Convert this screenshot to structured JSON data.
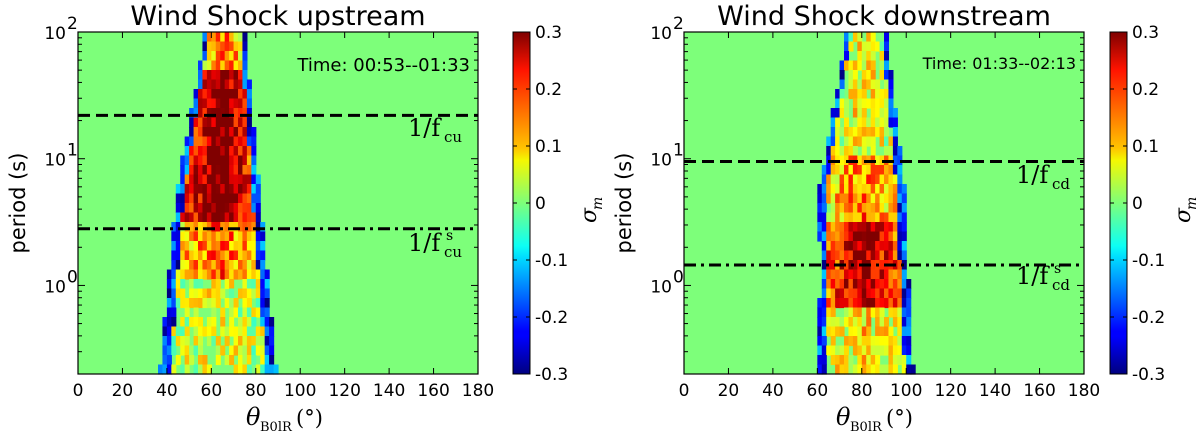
{
  "chart_data": [
    {
      "type": "heatmap",
      "title": "Wind Shock upstream",
      "annotation": "Time: 00:53--01:33",
      "ylabel": "period (s)",
      "xlabel_main": "θ",
      "xlabel_sub": "B0lR",
      "xlabel_unit": "(°)",
      "xlim": [
        0,
        180
      ],
      "ylim": [
        0.2,
        100
      ],
      "yscale": "log",
      "x_ticks": [
        "0",
        "20",
        "40",
        "60",
        "80",
        "100",
        "120",
        "140",
        "160",
        "180"
      ],
      "y_ticks": [
        "10",
        "10",
        "10"
      ],
      "y_tick_exps": [
        "0",
        "1",
        "2"
      ],
      "y_tick_values": [
        1,
        10,
        100
      ],
      "background_value": 0,
      "lines": [
        {
          "style": "dashed",
          "period": 22,
          "label_main": "1/f",
          "label_sub": "cu",
          "label_sup": ""
        },
        {
          "style": "dashdot",
          "period": 2.8,
          "label_main": "1/f",
          "label_sub": "cu",
          "label_sup": "s"
        }
      ],
      "structure": {
        "theta_center_top": 66,
        "theta_width_top": 14,
        "theta_center_mid": 63,
        "theta_width_mid": 33,
        "theta_center_low": 63,
        "theta_width_low": 48
      },
      "colorbar": {
        "label": "σ",
        "label_sub": "m",
        "ticks": [
          "0.3",
          "0.2",
          "0.1",
          "0",
          "-0.1",
          "-0.2",
          "-0.3"
        ],
        "vmin": -0.3,
        "vmax": 0.3
      }
    },
    {
      "type": "heatmap",
      "title": "Wind Shock downstream",
      "annotation": "Time: 01:33--02:13",
      "ylabel": "period (s)",
      "xlabel_main": "θ",
      "xlabel_sub": "B0lR",
      "xlabel_unit": "(°)",
      "xlim": [
        0,
        180
      ],
      "ylim": [
        0.2,
        100
      ],
      "yscale": "log",
      "x_ticks": [
        "0",
        "20",
        "40",
        "60",
        "80",
        "100",
        "120",
        "140",
        "160",
        "180"
      ],
      "y_ticks": [
        "10",
        "10",
        "10"
      ],
      "y_tick_exps": [
        "0",
        "1",
        "2"
      ],
      "y_tick_values": [
        1,
        10,
        100
      ],
      "background_value": 0,
      "lines": [
        {
          "style": "dashed",
          "period": 9.5,
          "label_main": "1/f",
          "label_sub": "cd",
          "label_sup": ""
        },
        {
          "style": "dashdot",
          "period": 1.45,
          "label_main": "1/f",
          "label_sub": "cd",
          "label_sup": "s"
        }
      ],
      "structure": {
        "theta_center_top": 82,
        "theta_width_top": 14,
        "theta_center_mid": 80,
        "theta_width_mid": 34,
        "theta_center_low": 82,
        "theta_width_low": 38
      },
      "colorbar": {
        "label": "σ",
        "label_sub": "m",
        "ticks": [
          "0.3",
          "0.2",
          "0.1",
          "0",
          "-0.1",
          "-0.2",
          "-0.3"
        ],
        "vmin": -0.3,
        "vmax": 0.3
      }
    }
  ]
}
